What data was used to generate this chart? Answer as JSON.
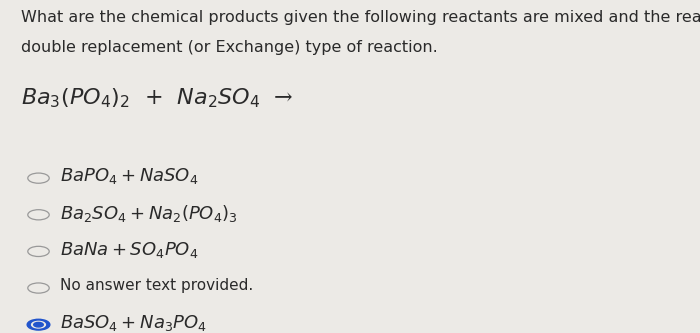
{
  "bg_color": "#eceae6",
  "text_color": "#2a2a2a",
  "question_line1": "What are the chemical products given the following reactants are mixed and the reaction is a",
  "question_line2": "double replacement (or Exchange) type of reaction.",
  "reaction": "$Ba_3(PO_4)_2$  +  $Na_2SO_4$  →",
  "options": [
    {
      "label": "$BaPO_4 + NaSO_4$",
      "selected": false,
      "is_text": false
    },
    {
      "label": "$Ba_2SO_4 + Na_2(PO_4)_3$",
      "selected": false,
      "is_text": false
    },
    {
      "label": "$BaNa + SO_4PO_4$",
      "selected": false,
      "is_text": false
    },
    {
      "label": "No answer text provided.",
      "selected": false,
      "is_text": true
    },
    {
      "label": "$BaSO_4 + Na_3PO_4$",
      "selected": true,
      "is_text": false
    }
  ],
  "separator_color": "#b8b4ae",
  "circle_color": "#999999",
  "selected_circle_color": "#2255cc",
  "option_font_size": 13,
  "question_font_size": 11.5,
  "reaction_font_size": 16,
  "no_answer_font_size": 11
}
